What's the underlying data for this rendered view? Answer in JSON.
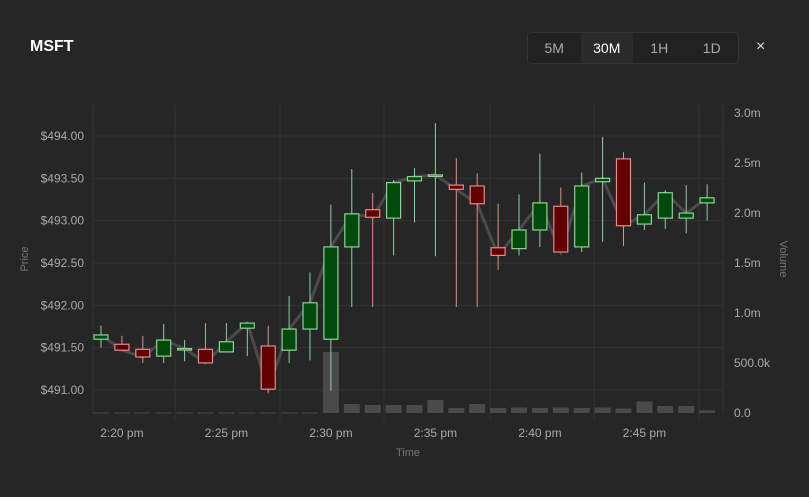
{
  "header": {
    "symbol": "MSFT",
    "close_label": "×"
  },
  "timeframes": [
    {
      "label": "5M",
      "active": false
    },
    {
      "label": "30M",
      "active": true
    },
    {
      "label": "1H",
      "active": false
    },
    {
      "label": "1D",
      "active": false
    }
  ],
  "colors": {
    "up_fill": "#004a0c",
    "up_stroke": "#8fd19a",
    "down_fill": "#620000",
    "down_stroke": "#e08d8d",
    "line": "#4a4a4a",
    "volume": "#4a4a4a",
    "grid": "#333333"
  },
  "chart_data": {
    "type": "candlestick",
    "xlabel": "Time",
    "ylabel": "Price",
    "y2label": "Volume",
    "ylim": [
      490.7,
      494.3
    ],
    "y2lim": [
      0,
      3000000
    ],
    "yticks": [
      {
        "v": 491.0,
        "label": "$491.00"
      },
      {
        "v": 491.5,
        "label": "$491.50"
      },
      {
        "v": 492.0,
        "label": "$492.00"
      },
      {
        "v": 492.5,
        "label": "$492.50"
      },
      {
        "v": 493.0,
        "label": "$493.00"
      },
      {
        "v": 493.5,
        "label": "$493.50"
      },
      {
        "v": 494.0,
        "label": "$494.00"
      }
    ],
    "y2ticks": [
      {
        "v": 0,
        "label": "0.0"
      },
      {
        "v": 500000,
        "label": "500.0k"
      },
      {
        "v": 1000000,
        "label": "1.0m"
      },
      {
        "v": 1500000,
        "label": "1.5m"
      },
      {
        "v": 2000000,
        "label": "2.0m"
      },
      {
        "v": 2500000,
        "label": "2.5m"
      },
      {
        "v": 3000000,
        "label": "3.0m"
      }
    ],
    "xticks": [
      {
        "t": 1,
        "label": "2:20 pm"
      },
      {
        "t": 6,
        "label": "2:25 pm"
      },
      {
        "t": 11,
        "label": "2:30 pm"
      },
      {
        "t": 16,
        "label": "2:35 pm"
      },
      {
        "t": 21,
        "label": "2:40 pm"
      },
      {
        "t": 26,
        "label": "2:45 pm"
      }
    ],
    "candles": [
      {
        "time": "2:19 pm",
        "o": 491.6,
        "h": 491.76,
        "l": 491.5,
        "c": 491.65,
        "v": 5000
      },
      {
        "time": "2:20 pm",
        "o": 491.54,
        "h": 491.64,
        "l": 491.47,
        "c": 491.47,
        "v": 5000
      },
      {
        "time": "2:21 pm",
        "o": 491.48,
        "h": 491.64,
        "l": 491.32,
        "c": 491.39,
        "v": 5000
      },
      {
        "time": "2:22 pm",
        "o": 491.4,
        "h": 491.78,
        "l": 491.32,
        "c": 491.59,
        "v": 5000
      },
      {
        "time": "2:23 pm",
        "o": 491.48,
        "h": 491.59,
        "l": 491.34,
        "c": 491.49,
        "v": 5000
      },
      {
        "time": "2:24 pm",
        "o": 491.48,
        "h": 491.79,
        "l": 491.32,
        "c": 491.32,
        "v": 5000
      },
      {
        "time": "2:25 pm",
        "o": 491.45,
        "h": 491.79,
        "l": 491.45,
        "c": 491.57,
        "v": 5000
      },
      {
        "time": "2:26 pm",
        "o": 491.73,
        "h": 491.8,
        "l": 491.4,
        "c": 491.79,
        "v": 5000
      },
      {
        "time": "2:27 pm",
        "o": 491.52,
        "h": 491.76,
        "l": 490.96,
        "c": 491.01,
        "v": 5000
      },
      {
        "time": "2:28 pm",
        "o": 491.47,
        "h": 492.11,
        "l": 491.32,
        "c": 491.72,
        "v": 5000
      },
      {
        "time": "2:29 pm",
        "o": 491.72,
        "h": 492.39,
        "l": 491.35,
        "c": 492.03,
        "v": 5000
      },
      {
        "time": "2:30 pm",
        "o": 491.6,
        "h": 493.19,
        "l": 490.99,
        "c": 492.69,
        "v": 610000
      },
      {
        "time": "2:31 pm",
        "o": 492.69,
        "h": 493.61,
        "l": 491.98,
        "c": 493.08,
        "v": 90000
      },
      {
        "time": "2:32 pm",
        "o": 493.13,
        "h": 493.33,
        "l": 491.98,
        "c": 493.04,
        "v": 80000
      },
      {
        "time": "2:33 pm",
        "o": 493.03,
        "h": 493.48,
        "l": 492.59,
        "c": 493.45,
        "v": 80000
      },
      {
        "time": "2:34 pm",
        "o": 493.47,
        "h": 493.62,
        "l": 492.98,
        "c": 493.52,
        "v": 80000
      },
      {
        "time": "2:35 pm",
        "o": 493.53,
        "h": 494.15,
        "l": 492.58,
        "c": 493.54,
        "v": 130000
      },
      {
        "time": "2:36 pm",
        "o": 493.42,
        "h": 493.74,
        "l": 491.98,
        "c": 493.37,
        "v": 50000
      },
      {
        "time": "2:37 pm",
        "o": 493.41,
        "h": 493.56,
        "l": 491.98,
        "c": 493.2,
        "v": 90000
      },
      {
        "time": "2:38 pm",
        "o": 492.68,
        "h": 493.2,
        "l": 492.42,
        "c": 492.59,
        "v": 50000
      },
      {
        "time": "2:39 pm",
        "o": 492.67,
        "h": 493.31,
        "l": 492.59,
        "c": 492.89,
        "v": 55000
      },
      {
        "time": "2:40 pm",
        "o": 492.89,
        "h": 493.79,
        "l": 492.69,
        "c": 493.21,
        "v": 50000
      },
      {
        "time": "2:41 pm",
        "o": 493.17,
        "h": 493.39,
        "l": 492.63,
        "c": 492.63,
        "v": 55000
      },
      {
        "time": "2:42 pm",
        "o": 492.69,
        "h": 493.57,
        "l": 492.63,
        "c": 493.41,
        "v": 50000
      },
      {
        "time": "2:43 pm",
        "o": 493.46,
        "h": 493.99,
        "l": 492.75,
        "c": 493.5,
        "v": 55000
      },
      {
        "time": "2:44 pm",
        "o": 493.73,
        "h": 493.81,
        "l": 492.7,
        "c": 492.94,
        "v": 45000
      },
      {
        "time": "2:45 pm",
        "o": 492.96,
        "h": 493.45,
        "l": 492.89,
        "c": 493.07,
        "v": 115000
      },
      {
        "time": "2:46 pm",
        "o": 493.03,
        "h": 493.36,
        "l": 492.9,
        "c": 493.33,
        "v": 70000
      },
      {
        "time": "2:47 pm",
        "o": 493.03,
        "h": 493.42,
        "l": 492.85,
        "c": 493.09,
        "v": 70000
      },
      {
        "time": "2:48 pm",
        "o": 493.21,
        "h": 493.43,
        "l": 493.0,
        "c": 493.27,
        "v": 25000
      }
    ]
  }
}
